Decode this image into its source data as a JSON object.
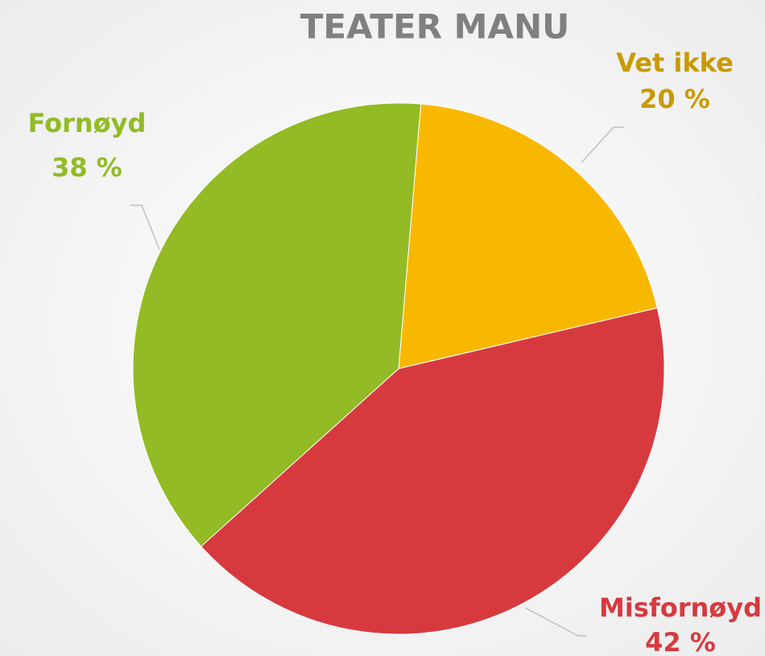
{
  "chart_data": {
    "type": "pie",
    "title": "TEATER MANU",
    "categories": [
      "Vet ikke",
      "Misfornøyd",
      "Fornøyd"
    ],
    "values": [
      20,
      42,
      38
    ],
    "value_labels": [
      "20 %",
      "42 %",
      "38 %"
    ],
    "colors": [
      "#f9b800",
      "#d63a3f",
      "#92bb25"
    ]
  }
}
